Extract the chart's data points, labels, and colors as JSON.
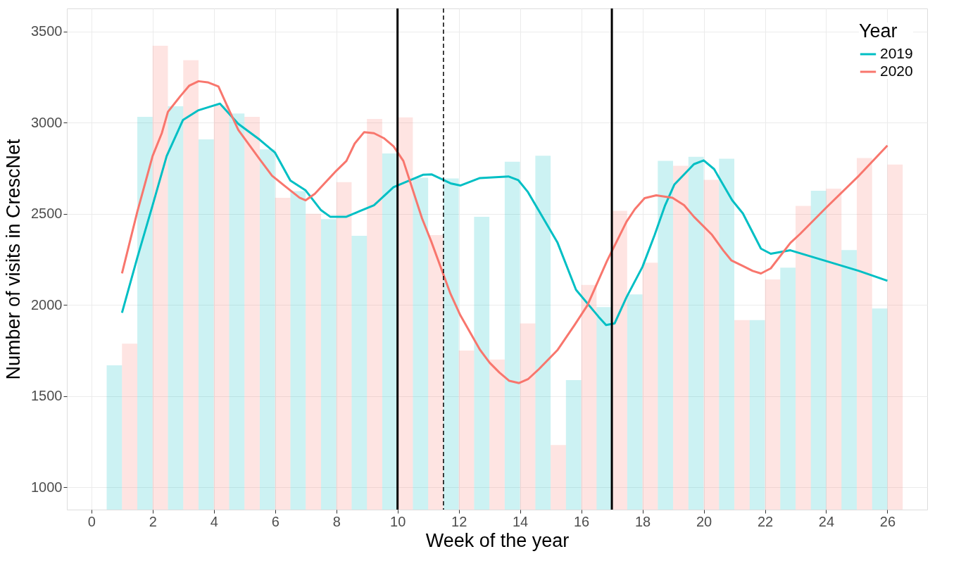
{
  "chart_data": {
    "type": "bar",
    "xlabel": "Week of the year",
    "ylabel": "Number of visits in CrescNet",
    "legend_title": "Year",
    "x": [
      1,
      2,
      3,
      4,
      5,
      6,
      7,
      8,
      9,
      10,
      11,
      12,
      13,
      14,
      15,
      16,
      17,
      18,
      19,
      20,
      21,
      22,
      23,
      24,
      25,
      26
    ],
    "series": [
      {
        "color": "#00bfc4",
        "values": [
          1669,
          3032,
          3090,
          2908,
          3050,
          2853,
          2624,
          2471,
          2379,
          2831,
          2698,
          2694,
          2484,
          2786,
          2818,
          1588,
          1989,
          2058,
          2790,
          2813,
          2802,
          1917,
          2205,
          2626,
          2301,
          1981
        ]
      },
      {
        "color": "#f8766d",
        "values": [
          1788,
          3421,
          3342,
          3094,
          3032,
          2588,
          2500,
          2674,
          3020,
          3029,
          2383,
          1750,
          1701,
          1899,
          1232,
          2110,
          2516,
          2232,
          2763,
          2686,
          1917,
          2140,
          2543,
          2638,
          2806,
          2770
        ]
      },
      {
        "name": "2019",
        "type": "line",
        "color": "#00bfc4",
        "x": [
          1,
          1.5,
          2,
          2.46,
          2.99,
          3.5,
          4,
          4.2,
          4.8,
          5.5,
          6,
          6.5,
          7,
          7.5,
          7.8,
          8.33,
          9.23,
          9.87,
          10.83,
          11.12,
          11.73,
          12.05,
          12.69,
          13.62,
          13.94,
          14.26,
          15.22,
          15.83,
          16.57,
          16.81,
          17.09,
          17.48,
          18.0,
          18.4,
          18.74,
          19.04,
          19.68,
          20.0,
          20.34,
          20.93,
          21.28,
          21.87,
          22.19,
          22.83,
          24,
          25.07,
          26
        ],
        "values": [
          1957,
          2259,
          2547,
          2817,
          3014,
          3068,
          3094,
          3104,
          2993,
          2906,
          2835,
          2682,
          2628,
          2520,
          2484,
          2484,
          2547,
          2646,
          2714,
          2716,
          2667,
          2655,
          2696,
          2705,
          2685,
          2619,
          2344,
          2083,
          1935,
          1890,
          1899,
          2043,
          2209,
          2385,
          2547,
          2660,
          2772,
          2793,
          2745,
          2574,
          2502,
          2309,
          2281,
          2300,
          2241,
          2187,
          2133
        ]
      },
      {
        "name": "2020",
        "type": "line",
        "color": "#f8766d",
        "x": [
          1,
          1.5,
          2,
          2.3,
          2.5,
          2.9,
          3.2,
          3.5,
          3.8,
          4.15,
          4.45,
          4.8,
          5.5,
          5.9,
          6.3,
          6.8,
          7.0,
          7.3,
          7.7,
          8.0,
          8.33,
          8.6,
          8.91,
          9.23,
          9.55,
          9.87,
          10.19,
          10.8,
          11.1,
          11.73,
          12.05,
          12.69,
          13.01,
          13.33,
          13.65,
          13.97,
          14.26,
          14.61,
          15.22,
          15.78,
          16.2,
          16.84,
          17.48,
          17.75,
          18.07,
          18.45,
          18.98,
          19.36,
          19.68,
          20.27,
          20.64,
          20.9,
          21.28,
          21.6,
          21.87,
          22.19,
          22.83,
          23.15,
          24,
          25.07,
          26
        ],
        "values": [
          2173,
          2511,
          2817,
          2942,
          3059,
          3144,
          3203,
          3227,
          3221,
          3198,
          3086,
          2960,
          2799,
          2709,
          2655,
          2588,
          2574,
          2610,
          2682,
          2736,
          2790,
          2885,
          2948,
          2942,
          2915,
          2870,
          2790,
          2475,
          2349,
          2061,
          1944,
          1755,
          1683,
          1629,
          1584,
          1572,
          1593,
          1647,
          1752,
          1890,
          1998,
          2241,
          2457,
          2525,
          2586,
          2601,
          2588,
          2547,
          2484,
          2385,
          2299,
          2245,
          2214,
          2187,
          2173,
          2201,
          2340,
          2390,
          2534,
          2709,
          2874
        ]
      }
    ],
    "xlim": [
      -0.8,
      27.3
    ],
    "xticks": [
      0,
      2,
      4,
      6,
      8,
      10,
      12,
      14,
      16,
      18,
      20,
      22,
      24,
      26
    ],
    "ylim": [
      878,
      3626
    ],
    "yticks": [
      1000,
      1500,
      2000,
      2500,
      3000,
      3500
    ],
    "ref_lines": [
      {
        "axis": "x",
        "value": 10,
        "line_style": "solid",
        "color": "#000000"
      },
      {
        "axis": "x",
        "value": 17,
        "line_style": "solid",
        "color": "#000000"
      },
      {
        "axis": "x",
        "value": 11.5,
        "line_style": "dashed",
        "color": "#000000"
      }
    ],
    "grid": true,
    "legend": "top right"
  }
}
